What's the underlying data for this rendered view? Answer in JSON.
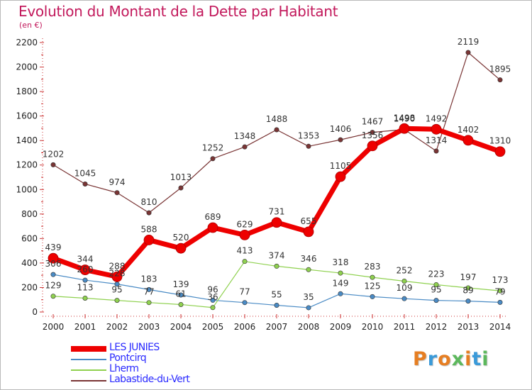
{
  "title": "Evolution du Montant de la Dette par Habitant",
  "subtitle": "(en €)",
  "logo": {
    "text": "Proxiti",
    "colors": [
      "#e67e22",
      "#3a9ad9",
      "#e67e22",
      "#5cb85c",
      "#e67e22",
      "#3a9ad9",
      "#5cb85c"
    ]
  },
  "chart_data": {
    "type": "line",
    "x": [
      "2000",
      "2001",
      "2002",
      "2003",
      "2004",
      "2005",
      "2006",
      "2007",
      "2008",
      "2009",
      "2010",
      "2011",
      "2012",
      "2013",
      "2014"
    ],
    "ylim": [
      0,
      2200
    ],
    "yticks": [
      0,
      200,
      400,
      600,
      800,
      1000,
      1200,
      1400,
      1600,
      1800,
      2000,
      2200
    ],
    "grid": false,
    "legend_position": "bottom-left",
    "series": [
      {
        "name": "LES JUNIES",
        "color": "#ee0000",
        "values": [
          439,
          344,
          288,
          588,
          520,
          689,
          629,
          731,
          655,
          1105,
          1356,
          1498,
          1492,
          1402,
          1310
        ],
        "labels": [
          "439",
          "344",
          "288",
          "588",
          "520",
          "689",
          "629",
          "731",
          "655",
          "1105",
          "1356",
          "1498",
          "1492",
          "1402",
          "1310"
        ]
      },
      {
        "name": "Pontcirq",
        "color": "#4a8bc5",
        "values": [
          306,
          260,
          228,
          183,
          139,
          96,
          77,
          55,
          35,
          149,
          125,
          109,
          95,
          89,
          79
        ],
        "labels": [
          "306",
          "260",
          "228",
          "183",
          "139",
          "96",
          "77",
          "55",
          "35",
          "149",
          "125",
          "109",
          "95",
          "89",
          "79"
        ]
      },
      {
        "name": "Lherm",
        "color": "#8fd14f",
        "values": [
          129,
          113,
          95,
          77,
          61,
          36,
          413,
          374,
          346,
          318,
          283,
          252,
          223,
          197,
          173
        ],
        "labels": [
          "129",
          "113",
          "95",
          "77",
          "61",
          "36",
          "413",
          "374",
          "346",
          "318",
          "283",
          "252",
          "223",
          "197",
          "173"
        ]
      },
      {
        "name": "Labastide-du-Vert",
        "color": "#7a3535",
        "values": [
          1202,
          1045,
          974,
          810,
          1013,
          1252,
          1348,
          1488,
          1353,
          1406,
          1467,
          1490,
          1314,
          2119,
          1895
        ],
        "labels": [
          "1202",
          "1045",
          "974",
          "810",
          "1013",
          "1252",
          "1348",
          "1488",
          "1353",
          "1406",
          "1467",
          "1490",
          "1314",
          "2119",
          "1895"
        ]
      }
    ]
  }
}
